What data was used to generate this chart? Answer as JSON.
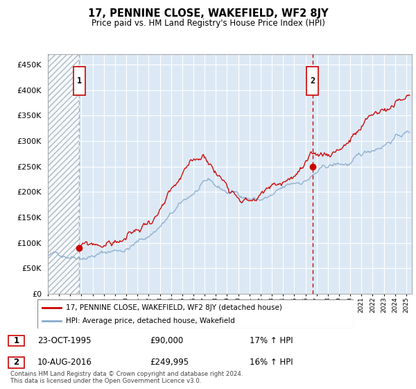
{
  "title": "17, PENNINE CLOSE, WAKEFIELD, WF2 8JY",
  "subtitle": "Price paid vs. HM Land Registry's House Price Index (HPI)",
  "ytick_values": [
    0,
    50000,
    100000,
    150000,
    200000,
    250000,
    300000,
    350000,
    400000,
    450000
  ],
  "ylim": [
    0,
    470000
  ],
  "sale1_date": 1995.81,
  "sale1_price": 90000,
  "sale1_label": "1",
  "sale2_date": 2016.62,
  "sale2_price": 249995,
  "sale2_label": "2",
  "sale_color": "#cc0000",
  "hpi_line_color": "#88aacc",
  "legend_label1": "17, PENNINE CLOSE, WAKEFIELD, WF2 8JY (detached house)",
  "legend_label2": "HPI: Average price, detached house, Wakefield",
  "table_row1": [
    "1",
    "23-OCT-1995",
    "£90,000",
    "17% ↑ HPI"
  ],
  "table_row2": [
    "2",
    "10-AUG-2016",
    "£249,995",
    "16% ↑ HPI"
  ],
  "copyright_text": "Contains HM Land Registry data © Crown copyright and database right 2024.\nThis data is licensed under the Open Government Licence v3.0.",
  "xmin": 1993.0,
  "xmax": 2025.5,
  "plot_bg_color": "#dce9f5",
  "hatch_color": "#c0cdd8"
}
